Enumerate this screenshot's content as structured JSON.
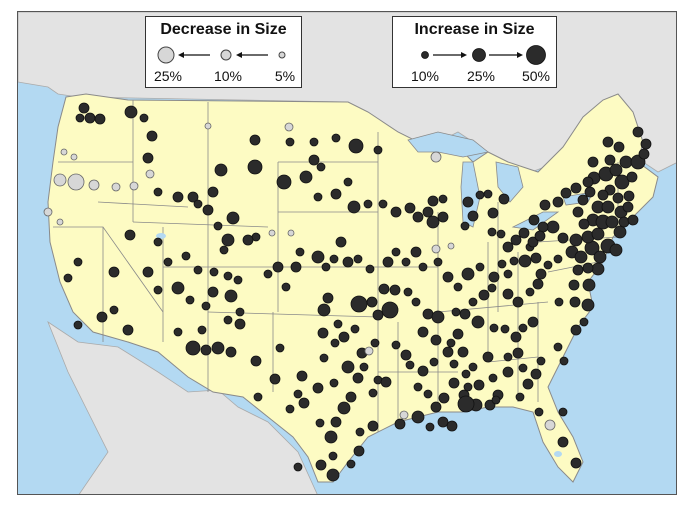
{
  "legend_decrease": {
    "title": "Decrease in Size",
    "labels": [
      "25%",
      "10%",
      "5%"
    ]
  },
  "legend_increase": {
    "title": "Increase in Size",
    "labels": [
      "10%",
      "25%",
      "50%"
    ]
  },
  "colors": {
    "land_us": "#fdfbc3",
    "land_other": "#e3e3e3",
    "water": "#b3d9f2",
    "state_border": "#8a8a8a",
    "increase_dot": "#2b2b2b",
    "decrease_dot": "#d7d7d7"
  },
  "point_counts": {
    "increase": "many",
    "decrease": "few"
  }
}
